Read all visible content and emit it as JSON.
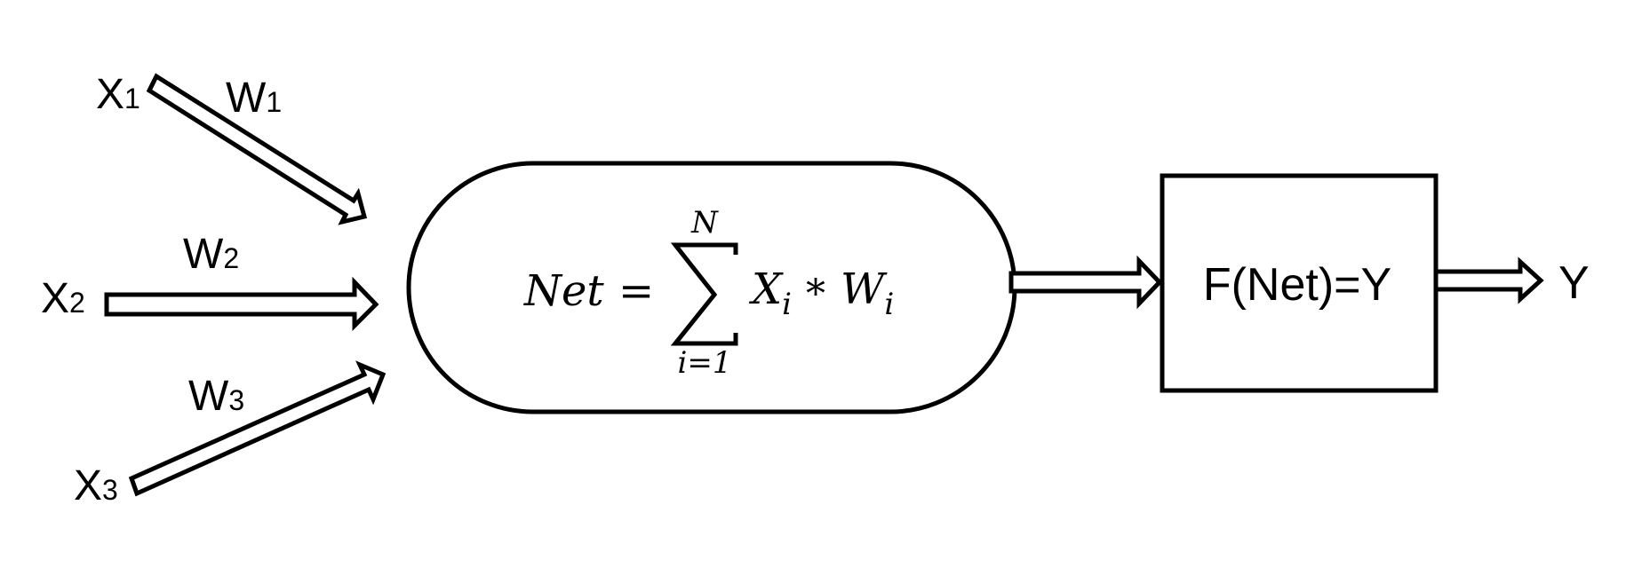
{
  "inputs": [
    {
      "var": "X",
      "sub": "1"
    },
    {
      "var": "X",
      "sub": "2"
    },
    {
      "var": "X",
      "sub": "3"
    }
  ],
  "weights": [
    {
      "var": "W",
      "sub": "1"
    },
    {
      "var": "W",
      "sub": "2"
    },
    {
      "var": "W",
      "sub": "3"
    }
  ],
  "summation": {
    "lhs": "Net",
    "equals": "=",
    "upper_limit": "N",
    "lower_limit": "i=1",
    "term_x": "X",
    "term_x_sub": "i",
    "operator": "*",
    "term_w": "W",
    "term_w_sub": "i"
  },
  "activation": {
    "label": "F(Net)=Y"
  },
  "output": {
    "label": "Y"
  }
}
